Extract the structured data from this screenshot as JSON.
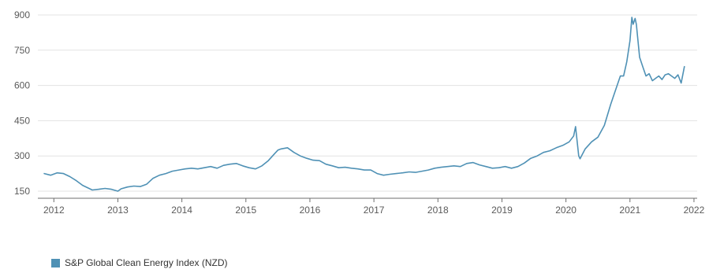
{
  "chart_data": {
    "type": "line",
    "title": "",
    "xlabel": "",
    "ylabel": "",
    "xlim": [
      2011.75,
      2022.05
    ],
    "ylim": [
      120,
      930
    ],
    "yticks": [
      150,
      300,
      450,
      600,
      750,
      900
    ],
    "ytick_labels": [
      "150",
      "300",
      "450",
      "600",
      "750",
      "900"
    ],
    "xticks": [
      2012,
      2013,
      2014,
      2015,
      2016,
      2017,
      2018,
      2019,
      2020,
      2021,
      2022
    ],
    "xtick_labels": [
      "2012",
      "2013",
      "2014",
      "2015",
      "2016",
      "2017",
      "2018",
      "2019",
      "2020",
      "2021",
      "2022"
    ],
    "grid": "horizontal",
    "legend_position": "bottom-left",
    "series": [
      {
        "name": "S&P Global Clean Energy Index (NZD)",
        "color": "#4f91b5",
        "x": [
          2011.85,
          2011.95,
          2012.05,
          2012.15,
          2012.25,
          2012.35,
          2012.45,
          2012.55,
          2012.6,
          2012.7,
          2012.8,
          2012.9,
          2013.0,
          2013.05,
          2013.15,
          2013.25,
          2013.35,
          2013.45,
          2013.55,
          2013.65,
          2013.75,
          2013.85,
          2013.95,
          2014.05,
          2014.15,
          2014.25,
          2014.35,
          2014.45,
          2014.55,
          2014.65,
          2014.75,
          2014.85,
          2014.95,
          2015.05,
          2015.15,
          2015.25,
          2015.35,
          2015.45,
          2015.5,
          2015.55,
          2015.65,
          2015.75,
          2015.85,
          2015.95,
          2016.05,
          2016.15,
          2016.25,
          2016.35,
          2016.45,
          2016.55,
          2016.65,
          2016.75,
          2016.85,
          2016.95,
          2017.05,
          2017.15,
          2017.25,
          2017.35,
          2017.45,
          2017.55,
          2017.65,
          2017.75,
          2017.85,
          2017.95,
          2018.05,
          2018.15,
          2018.25,
          2018.35,
          2018.45,
          2018.55,
          2018.65,
          2018.75,
          2018.85,
          2018.95,
          2019.05,
          2019.15,
          2019.25,
          2019.35,
          2019.45,
          2019.55,
          2019.65,
          2019.75,
          2019.85,
          2019.95,
          2020.05,
          2020.12,
          2020.15,
          2020.2,
          2020.22,
          2020.3,
          2020.4,
          2020.5,
          2020.6,
          2020.7,
          2020.8,
          2020.85,
          2020.9,
          2020.95,
          2021.0,
          2021.03,
          2021.05,
          2021.08,
          2021.1,
          2021.15,
          2021.2,
          2021.25,
          2021.3,
          2021.35,
          2021.4,
          2021.45,
          2021.5,
          2021.55,
          2021.6,
          2021.65,
          2021.7,
          2021.75,
          2021.8,
          2021.85
        ],
        "y": [
          225,
          218,
          228,
          225,
          212,
          195,
          175,
          162,
          155,
          158,
          162,
          158,
          150,
          160,
          168,
          172,
          170,
          180,
          205,
          218,
          225,
          235,
          240,
          245,
          248,
          245,
          250,
          255,
          248,
          260,
          265,
          268,
          258,
          250,
          245,
          258,
          280,
          310,
          325,
          330,
          335,
          315,
          300,
          290,
          282,
          280,
          265,
          258,
          250,
          252,
          248,
          245,
          240,
          240,
          225,
          218,
          222,
          225,
          228,
          232,
          230,
          235,
          240,
          248,
          252,
          255,
          258,
          255,
          268,
          272,
          262,
          255,
          248,
          250,
          255,
          248,
          255,
          270,
          290,
          300,
          315,
          322,
          335,
          345,
          360,
          385,
          425,
          300,
          288,
          330,
          360,
          380,
          430,
          520,
          600,
          640,
          640,
          700,
          790,
          890,
          860,
          885,
          860,
          720,
          680,
          640,
          650,
          620,
          630,
          640,
          625,
          645,
          650,
          640,
          630,
          645,
          610,
          680
        ]
      }
    ]
  }
}
